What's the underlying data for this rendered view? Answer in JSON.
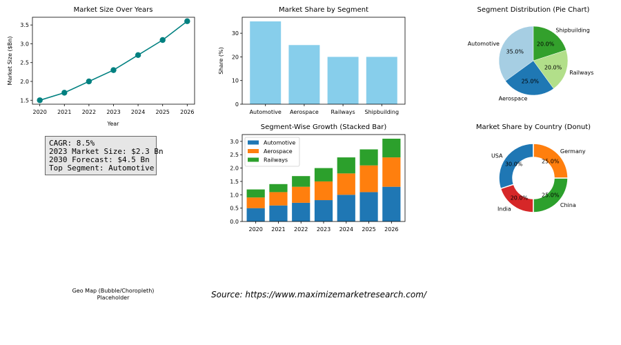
{
  "info": {
    "lines": [
      "CAGR: 8.5%",
      "2023 Market Size: $2.3 Bn",
      "2030 Forecast: $4.5 Bn",
      "Top Segment: Automotive"
    ]
  },
  "geo_placeholder": {
    "line1": "Geo Map (Bubble/Choropleth)",
    "line2": "Placeholder"
  },
  "source": "Source: https://www.maximizemarketresearch.com/",
  "chart_data": [
    {
      "type": "line",
      "title": "Market Size Over Years",
      "xlabel": "Year",
      "ylabel": "Market Size ($Bn)",
      "x": [
        2020,
        2021,
        2022,
        2023,
        2024,
        2025,
        2026
      ],
      "values": [
        1.5,
        1.7,
        2.0,
        2.3,
        2.7,
        3.1,
        3.6
      ],
      "yticks": [
        1.5,
        2.0,
        2.5,
        3.0,
        3.5
      ],
      "ylim": [
        1.395,
        3.705
      ],
      "color": "#008080",
      "grid": false
    },
    {
      "type": "bar",
      "title": "Market Share by Segment",
      "xlabel": "",
      "ylabel": "Share (%)",
      "categories": [
        "Automotive",
        "Aerospace",
        "Railways",
        "Shipbuilding"
      ],
      "values": [
        35,
        25,
        20,
        20
      ],
      "yticks": [
        0,
        10,
        20,
        30
      ],
      "ylim": [
        0,
        36.75
      ],
      "color": "#87ceeb",
      "grid": false
    },
    {
      "type": "pie",
      "title": "Segment Distribution (Pie Chart)",
      "categories": [
        "Automotive",
        "Aerospace",
        "Railways",
        "Shipbuilding"
      ],
      "values": [
        35,
        25,
        20,
        20
      ],
      "labels_pct": [
        "35.0%",
        "25.0%",
        "20.0%",
        "20.0%"
      ],
      "colors": [
        "#a6cee3",
        "#1f78b4",
        "#b2df8a",
        "#33a02c"
      ]
    },
    {
      "type": "bar",
      "stacked": true,
      "title": "Segment-Wise Growth (Stacked Bar)",
      "categories": [
        "2020",
        "2021",
        "2022",
        "2023",
        "2024",
        "2025",
        "2026"
      ],
      "series": [
        {
          "name": "Automotive",
          "values": [
            0.5,
            0.6,
            0.7,
            0.8,
            1.0,
            1.1,
            1.3
          ],
          "color": "#1f77b4"
        },
        {
          "name": "Aerospace",
          "values": [
            0.4,
            0.5,
            0.6,
            0.7,
            0.8,
            1.0,
            1.1
          ],
          "color": "#ff7f0e"
        },
        {
          "name": "Railways",
          "values": [
            0.3,
            0.3,
            0.4,
            0.5,
            0.6,
            0.6,
            0.7
          ],
          "color": "#2ca02c"
        }
      ],
      "yticks": [
        "0.0",
        "0.5",
        "1.0",
        "1.5",
        "2.0",
        "2.5",
        "3.0"
      ],
      "ylim": [
        0,
        3.255
      ],
      "legend": "top-left",
      "grid": false
    },
    {
      "type": "pie",
      "donut": true,
      "title": "Market Share by Country (Donut)",
      "categories": [
        "USA",
        "India",
        "China",
        "Germany"
      ],
      "values": [
        30,
        20,
        25,
        25
      ],
      "labels_pct": [
        "30.0%",
        "20.0%",
        "25.0%",
        "25.0%"
      ],
      "colors": [
        "#1f77b4",
        "#d62728",
        "#2ca02c",
        "#ff7f0e"
      ]
    }
  ]
}
